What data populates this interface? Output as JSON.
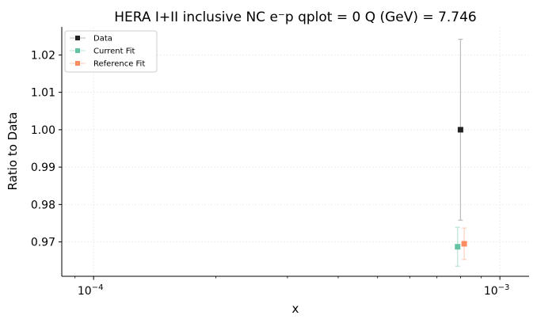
{
  "chart_data": {
    "type": "scatter",
    "title": "HERA I+II inclusive NC e⁻p qplot = 0 Q (GeV) = 7.746",
    "xlabel": "x",
    "ylabel": "Ratio to Data",
    "xscale": "log",
    "xlim": [
      8.35e-05,
      0.00118
    ],
    "ylim": [
      0.9608,
      1.0275
    ],
    "grid": true,
    "legend_position": "top-left",
    "x_ticks": [
      {
        "value": 0.0001,
        "base": "10",
        "exp": "−4"
      },
      {
        "value": 0.001,
        "base": "10",
        "exp": "−3"
      }
    ],
    "y_ticks": [
      {
        "value": 0.97,
        "label": "0.97"
      },
      {
        "value": 0.98,
        "label": "0.98"
      },
      {
        "value": 0.99,
        "label": "0.99"
      },
      {
        "value": 1.0,
        "label": "1.00"
      },
      {
        "value": 1.01,
        "label": "1.01"
      },
      {
        "value": 1.02,
        "label": "1.02"
      }
    ],
    "series": [
      {
        "name": "Data",
        "color": "#222222",
        "error_color": "#bbbbbb",
        "points": [
          {
            "x": 0.0008,
            "y": 1.0,
            "err": 0.0242
          }
        ]
      },
      {
        "name": "Current Fit",
        "color": "#66c2a5",
        "error_color": "#b8e3d3",
        "points": [
          {
            "x": 0.000787,
            "y": 0.9687,
            "err": 0.0052
          }
        ]
      },
      {
        "name": "Reference Fit",
        "color": "#fc8d62",
        "error_color": "#fdd0bd",
        "points": [
          {
            "x": 0.000817,
            "y": 0.9695,
            "err": 0.0042
          }
        ]
      }
    ]
  }
}
